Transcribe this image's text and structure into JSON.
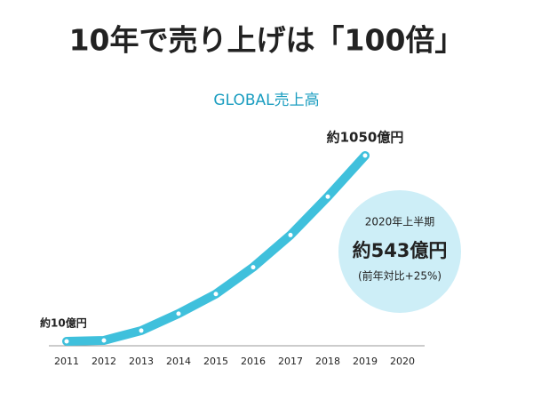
{
  "chart_data": {
    "type": "line",
    "title": "10年で売り上げは「100倍」",
    "subtitle": "GLOBAL売上高",
    "categories": [
      "2011",
      "2012",
      "2013",
      "2014",
      "2015",
      "2016",
      "2017",
      "2018",
      "2019",
      "2020"
    ],
    "values": [
      10,
      15,
      70,
      165,
      275,
      425,
      605,
      820,
      1050,
      null
    ],
    "value_labels": [
      "約10億円",
      null,
      null,
      null,
      null,
      null,
      null,
      null,
      "約1050億円",
      null
    ],
    "color": "#3fc0dc",
    "annotation": {
      "title": "2020年上半期",
      "value": "約543億円",
      "note": "(前年対比+25%)",
      "color": "#cdeef7"
    }
  }
}
